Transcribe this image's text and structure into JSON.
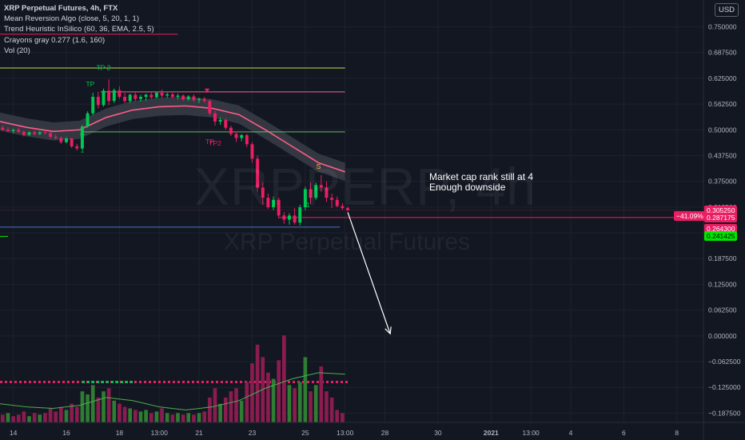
{
  "legend": {
    "symbol_line": "XRP Perpetual Futures, 4h, FTX",
    "indicators": [
      "Mean Reversion Algo (close, 5, 20, 1, 1)",
      "Trend Heuristic InSilico (60, 36, EMA, 2.5, 5)",
      "Crayons gray 0.277 (1.6, 160)",
      "Vol (20)"
    ]
  },
  "currency": "USD",
  "watermark": {
    "title": "XRPPERP, 4h",
    "subtitle": "XRP Perpetual Futures"
  },
  "annotation": [
    "Market cap rank still at 4",
    "Enough downside"
  ],
  "price_labels": {
    "percent": "−41.09%",
    "items": [
      {
        "text": "0.305250",
        "value": 0.30525,
        "bg": "#e91e63",
        "fg": "#ffffff"
      },
      {
        "text": "0.287175",
        "value": 0.287175,
        "bg": "#e91e63",
        "fg": "#ffffff"
      },
      {
        "text": "0.264625",
        "value": 0.264625,
        "bg": "#5d606b",
        "fg": "#ffffff"
      },
      {
        "text": "0.264300",
        "value": 0.2643,
        "bg": "#e91e63",
        "fg": "#ffffff"
      },
      {
        "text": "0.241425",
        "value": 0.241425,
        "bg": "#00e600",
        "fg": "#000000"
      }
    ]
  },
  "signal_labels": [
    {
      "text": "TP 2",
      "x": 17.4,
      "y": 0.645,
      "color": "#00c853"
    },
    {
      "text": "TP",
      "x": 16.9,
      "y": 0.605,
      "color": "#00c853"
    },
    {
      "text": "1",
      "x": 16.6,
      "y": 0.445,
      "color": "#00c853"
    },
    {
      "text": "TP2",
      "x": 21.6,
      "y": 0.462,
      "color": "#e91e63"
    },
    {
      "text": "TP",
      "x": 21.4,
      "y": 0.466,
      "color": "#e91e63"
    },
    {
      "text": "1",
      "x": 25.1,
      "y": 0.312,
      "color": "#00c853"
    },
    {
      "text": "S",
      "x": 25.5,
      "y": 0.405,
      "color": "#ffb74d"
    }
  ],
  "colors": {
    "background": "#131722",
    "grid": "#1e222d",
    "up": "#00c853",
    "down": "#e91e63",
    "band": "#3a3d46",
    "ema": "#ff5c8a",
    "volume_up": "#2e7d32",
    "volume_down": "#8b1c4f",
    "annotation_arrow": "#ffffff"
  },
  "chart_data": {
    "type": "candlestick",
    "title": "XRP Perpetual Futures, 4h, FTX",
    "x_axis": {
      "ticks": [
        "14",
        "16",
        "18",
        "13:00",
        "21",
        "23",
        "25",
        "13:00",
        "28",
        "30",
        "2021",
        "13:00",
        "4",
        "6",
        "8"
      ],
      "tick_x": [
        14,
        16,
        18,
        19.5,
        21,
        23,
        25,
        26.5,
        28,
        30,
        32,
        33.5,
        35,
        37,
        39
      ]
    },
    "y_axis": {
      "ticks": [
        "0.750000",
        "0.687500",
        "0.625000",
        "0.562500",
        "0.500000",
        "0.437500",
        "0.375000",
        "0.312500",
        "0.250000",
        "0.187500",
        "0.125000",
        "0.062500",
        "0.000000",
        "−0.062500",
        "−0.125000",
        "−0.187500"
      ],
      "tick_values": [
        0.75,
        0.6875,
        0.625,
        0.5625,
        0.5,
        0.4375,
        0.375,
        0.3125,
        0.25,
        0.1875,
        0.125,
        0.0625,
        0.0,
        -0.0625,
        -0.125,
        -0.1875
      ],
      "range": [
        -0.21,
        0.815
      ]
    },
    "ohlc": [
      [
        13.6,
        0.505,
        0.51,
        0.498,
        0.5
      ],
      [
        13.8,
        0.5,
        0.506,
        0.494,
        0.497
      ],
      [
        14.0,
        0.497,
        0.503,
        0.491,
        0.5
      ],
      [
        14.2,
        0.5,
        0.505,
        0.493,
        0.495
      ],
      [
        14.4,
        0.495,
        0.499,
        0.484,
        0.488
      ],
      [
        14.6,
        0.488,
        0.496,
        0.485,
        0.494
      ],
      [
        14.8,
        0.494,
        0.498,
        0.486,
        0.49
      ],
      [
        15.0,
        0.49,
        0.497,
        0.487,
        0.494
      ],
      [
        15.2,
        0.494,
        0.499,
        0.489,
        0.492
      ],
      [
        15.4,
        0.492,
        0.495,
        0.479,
        0.483
      ],
      [
        15.6,
        0.483,
        0.489,
        0.476,
        0.48
      ],
      [
        15.8,
        0.48,
        0.484,
        0.466,
        0.47
      ],
      [
        16.0,
        0.47,
        0.482,
        0.467,
        0.479
      ],
      [
        16.2,
        0.479,
        0.481,
        0.456,
        0.46
      ],
      [
        16.4,
        0.46,
        0.466,
        0.45,
        0.455
      ],
      [
        16.6,
        0.455,
        0.512,
        0.452,
        0.508
      ],
      [
        16.8,
        0.508,
        0.545,
        0.505,
        0.54
      ],
      [
        17.0,
        0.54,
        0.59,
        0.535,
        0.58
      ],
      [
        17.2,
        0.58,
        0.592,
        0.552,
        0.56
      ],
      [
        17.4,
        0.56,
        0.6,
        0.556,
        0.595
      ],
      [
        17.6,
        0.595,
        0.622,
        0.56,
        0.57
      ],
      [
        17.8,
        0.57,
        0.6,
        0.565,
        0.596
      ],
      [
        18.0,
        0.596,
        0.605,
        0.575,
        0.58
      ],
      [
        18.2,
        0.58,
        0.59,
        0.565,
        0.57
      ],
      [
        18.4,
        0.57,
        0.588,
        0.565,
        0.585
      ],
      [
        18.6,
        0.585,
        0.592,
        0.57,
        0.575
      ],
      [
        18.8,
        0.575,
        0.585,
        0.568,
        0.58
      ],
      [
        19.0,
        0.58,
        0.588,
        0.57,
        0.585
      ],
      [
        19.2,
        0.585,
        0.592,
        0.575,
        0.579
      ],
      [
        19.4,
        0.579,
        0.593,
        0.576,
        0.59
      ],
      [
        19.6,
        0.59,
        0.598,
        0.578,
        0.583
      ],
      [
        19.8,
        0.583,
        0.59,
        0.577,
        0.586
      ],
      [
        20.0,
        0.586,
        0.59,
        0.576,
        0.58
      ],
      [
        20.2,
        0.58,
        0.588,
        0.574,
        0.583
      ],
      [
        20.4,
        0.583,
        0.586,
        0.57,
        0.574
      ],
      [
        20.6,
        0.574,
        0.584,
        0.57,
        0.581
      ],
      [
        20.8,
        0.581,
        0.586,
        0.568,
        0.572
      ],
      [
        21.0,
        0.572,
        0.578,
        0.565,
        0.575
      ],
      [
        21.2,
        0.575,
        0.58,
        0.565,
        0.57
      ],
      [
        21.4,
        0.57,
        0.574,
        0.535,
        0.54
      ],
      [
        21.6,
        0.54,
        0.546,
        0.51,
        0.52
      ],
      [
        21.8,
        0.52,
        0.53,
        0.512,
        0.524
      ],
      [
        22.0,
        0.524,
        0.528,
        0.5,
        0.505
      ],
      [
        22.2,
        0.505,
        0.51,
        0.485,
        0.49
      ],
      [
        22.4,
        0.49,
        0.496,
        0.47,
        0.48
      ],
      [
        22.6,
        0.48,
        0.49,
        0.472,
        0.487
      ],
      [
        22.8,
        0.487,
        0.49,
        0.458,
        0.465
      ],
      [
        23.0,
        0.465,
        0.47,
        0.42,
        0.43
      ],
      [
        23.2,
        0.43,
        0.438,
        0.35,
        0.36
      ],
      [
        23.4,
        0.36,
        0.372,
        0.318,
        0.335
      ],
      [
        23.6,
        0.335,
        0.345,
        0.308,
        0.312
      ],
      [
        23.8,
        0.312,
        0.338,
        0.305,
        0.33
      ],
      [
        24.0,
        0.33,
        0.335,
        0.285,
        0.292
      ],
      [
        24.2,
        0.292,
        0.3,
        0.272,
        0.282
      ],
      [
        24.4,
        0.282,
        0.298,
        0.27,
        0.292
      ],
      [
        24.6,
        0.292,
        0.31,
        0.27,
        0.275
      ],
      [
        24.8,
        0.275,
        0.318,
        0.268,
        0.312
      ],
      [
        25.0,
        0.312,
        0.362,
        0.305,
        0.356
      ],
      [
        25.2,
        0.356,
        0.372,
        0.32,
        0.335
      ],
      [
        25.4,
        0.335,
        0.372,
        0.33,
        0.366
      ],
      [
        25.6,
        0.366,
        0.39,
        0.35,
        0.36
      ],
      [
        25.8,
        0.36,
        0.375,
        0.325,
        0.335
      ],
      [
        26.0,
        0.335,
        0.345,
        0.31,
        0.33
      ],
      [
        26.2,
        0.33,
        0.338,
        0.312,
        0.315
      ],
      [
        26.4,
        0.315,
        0.322,
        0.306,
        0.31
      ],
      [
        26.6,
        0.31,
        0.314,
        0.303,
        0.305
      ]
    ],
    "ema_line": [
      [
        13.5,
        0.52
      ],
      [
        14.5,
        0.506
      ],
      [
        15.5,
        0.496
      ],
      [
        16.5,
        0.5
      ],
      [
        17.5,
        0.53
      ],
      [
        18.5,
        0.548
      ],
      [
        19.5,
        0.556
      ],
      [
        20.5,
        0.558
      ],
      [
        21.5,
        0.552
      ],
      [
        22.5,
        0.537
      ],
      [
        23.5,
        0.5
      ],
      [
        24.5,
        0.46
      ],
      [
        25.5,
        0.42
      ],
      [
        26.5,
        0.398
      ]
    ],
    "band_half_width": 0.022,
    "horizontal_lines": [
      {
        "value": 0.65,
        "from": 13.5,
        "to": 26.5,
        "color": "#c6d44a"
      },
      {
        "value": 0.592,
        "from": 17.3,
        "to": 26.5,
        "color": "#f06292"
      },
      {
        "value": 0.495,
        "from": 16.6,
        "to": 26.5,
        "color": "#66bb6a"
      },
      {
        "value": 0.305,
        "from": 13.5,
        "to": 39.5,
        "color": "#3a1f2c"
      },
      {
        "value": 0.287175,
        "from": 24.0,
        "to": 39.5,
        "color": "#e91e63"
      },
      {
        "value": 0.264,
        "from": 13.5,
        "to": 26.3,
        "color": "#4a77c4"
      },
      {
        "value": 0.241425,
        "from": 13.5,
        "to": 13.8,
        "color": "#00e600"
      },
      {
        "value": 0.732,
        "from": 13.5,
        "to": 20.2,
        "color": "#e91e63"
      }
    ],
    "arrow": {
      "from": [
        26.6,
        0.3
      ],
      "to": [
        28.2,
        0.005
      ]
    },
    "volume": [
      {
        "x": 13.6,
        "v": 0.5,
        "up": false
      },
      {
        "x": 13.8,
        "v": 0.6,
        "up": true
      },
      {
        "x": 14.0,
        "v": 0.4,
        "up": false
      },
      {
        "x": 14.2,
        "v": 0.5,
        "up": false
      },
      {
        "x": 14.4,
        "v": 0.7,
        "up": false
      },
      {
        "x": 14.6,
        "v": 0.4,
        "up": true
      },
      {
        "x": 14.8,
        "v": 0.6,
        "up": false
      },
      {
        "x": 15.0,
        "v": 0.5,
        "up": true
      },
      {
        "x": 15.2,
        "v": 0.6,
        "up": false
      },
      {
        "x": 15.4,
        "v": 0.9,
        "up": false
      },
      {
        "x": 15.6,
        "v": 0.7,
        "up": false
      },
      {
        "x": 15.8,
        "v": 1.0,
        "up": false
      },
      {
        "x": 16.0,
        "v": 0.8,
        "up": true
      },
      {
        "x": 16.2,
        "v": 1.2,
        "up": false
      },
      {
        "x": 16.4,
        "v": 1.0,
        "up": false
      },
      {
        "x": 16.6,
        "v": 2.0,
        "up": true
      },
      {
        "x": 16.8,
        "v": 1.8,
        "up": true
      },
      {
        "x": 17.0,
        "v": 2.4,
        "up": true
      },
      {
        "x": 17.2,
        "v": 1.6,
        "up": false
      },
      {
        "x": 17.4,
        "v": 2.0,
        "up": true
      },
      {
        "x": 17.6,
        "v": 2.2,
        "up": false
      },
      {
        "x": 17.8,
        "v": 1.4,
        "up": true
      },
      {
        "x": 18.0,
        "v": 1.2,
        "up": false
      },
      {
        "x": 18.2,
        "v": 1.0,
        "up": false
      },
      {
        "x": 18.4,
        "v": 0.9,
        "up": true
      },
      {
        "x": 18.6,
        "v": 0.8,
        "up": false
      },
      {
        "x": 18.8,
        "v": 0.7,
        "up": true
      },
      {
        "x": 19.0,
        "v": 0.8,
        "up": true
      },
      {
        "x": 19.2,
        "v": 0.6,
        "up": false
      },
      {
        "x": 19.4,
        "v": 0.7,
        "up": true
      },
      {
        "x": 19.6,
        "v": 0.9,
        "up": false
      },
      {
        "x": 19.8,
        "v": 0.6,
        "up": true
      },
      {
        "x": 20.0,
        "v": 0.5,
        "up": false
      },
      {
        "x": 20.2,
        "v": 0.6,
        "up": true
      },
      {
        "x": 20.4,
        "v": 0.5,
        "up": false
      },
      {
        "x": 20.6,
        "v": 0.6,
        "up": true
      },
      {
        "x": 20.8,
        "v": 0.5,
        "up": false
      },
      {
        "x": 21.0,
        "v": 0.6,
        "up": true
      },
      {
        "x": 21.2,
        "v": 0.7,
        "up": false
      },
      {
        "x": 21.4,
        "v": 1.6,
        "up": false
      },
      {
        "x": 21.6,
        "v": 2.2,
        "up": false
      },
      {
        "x": 21.8,
        "v": 1.2,
        "up": true
      },
      {
        "x": 22.0,
        "v": 1.6,
        "up": false
      },
      {
        "x": 22.2,
        "v": 2.0,
        "up": false
      },
      {
        "x": 22.4,
        "v": 2.2,
        "up": false
      },
      {
        "x": 22.6,
        "v": 1.4,
        "up": true
      },
      {
        "x": 22.8,
        "v": 2.6,
        "up": false
      },
      {
        "x": 23.0,
        "v": 3.8,
        "up": false
      },
      {
        "x": 23.2,
        "v": 5.0,
        "up": false
      },
      {
        "x": 23.4,
        "v": 4.2,
        "up": false
      },
      {
        "x": 23.6,
        "v": 3.2,
        "up": false
      },
      {
        "x": 23.8,
        "v": 2.8,
        "up": true
      },
      {
        "x": 24.0,
        "v": 4.0,
        "up": false
      },
      {
        "x": 24.2,
        "v": 5.6,
        "up": false
      },
      {
        "x": 24.4,
        "v": 2.4,
        "up": true
      },
      {
        "x": 24.6,
        "v": 2.2,
        "up": false
      },
      {
        "x": 24.8,
        "v": 2.6,
        "up": true
      },
      {
        "x": 25.0,
        "v": 4.2,
        "up": true
      },
      {
        "x": 25.2,
        "v": 2.0,
        "up": false
      },
      {
        "x": 25.4,
        "v": 2.4,
        "up": true
      },
      {
        "x": 25.6,
        "v": 3.6,
        "up": false
      },
      {
        "x": 25.8,
        "v": 2.0,
        "up": false
      },
      {
        "x": 26.0,
        "v": 1.6,
        "up": false
      },
      {
        "x": 26.2,
        "v": 0.8,
        "up": false
      },
      {
        "x": 26.4,
        "v": 0.6,
        "up": false
      }
    ],
    "volume_ma": [
      [
        13.5,
        1.2
      ],
      [
        14.5,
        1.0
      ],
      [
        15.5,
        0.9
      ],
      [
        16.5,
        1.1
      ],
      [
        17.5,
        1.6
      ],
      [
        18.5,
        1.4
      ],
      [
        19.5,
        1.0
      ],
      [
        20.5,
        0.8
      ],
      [
        21.5,
        1.0
      ],
      [
        22.5,
        1.4
      ],
      [
        23.5,
        2.2
      ],
      [
        24.5,
        2.8
      ],
      [
        25.5,
        3.2
      ],
      [
        26.5,
        3.1
      ]
    ],
    "volume_max": 7.0,
    "volume_ma_level": 2.6,
    "x_range": [
      13.5,
      40.0
    ]
  }
}
